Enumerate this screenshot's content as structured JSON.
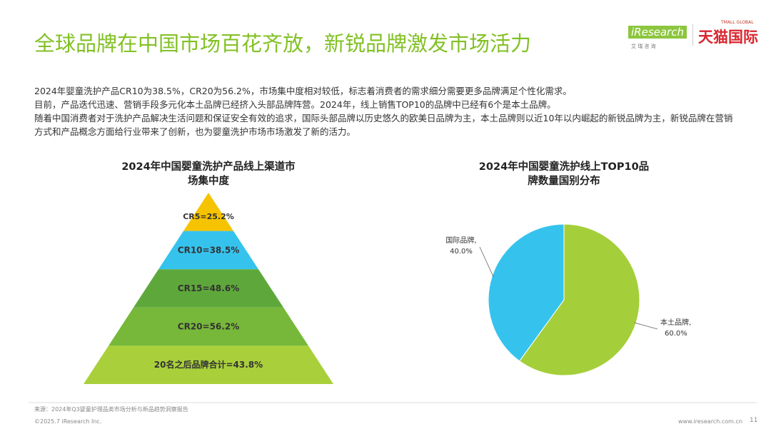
{
  "header": {
    "title": "全球品牌在中国市场百花齐放，新锐品牌激发市场活力",
    "logo_en": "iResearch",
    "logo_cn": "艾 瑞 咨 询",
    "partner": "天猫国际",
    "partner_en": "TMALL GLOBAL"
  },
  "paragraphs": [
    "2024年婴童洗护产品CR10为38.5%，CR20为56.2%，市场集中度相对较低，标志着消费者的需求细分需要更多品牌满足个性化需求。",
    "目前，产品迭代迅速、营销手段多元化本土品牌已经挤入头部品牌阵营。2024年，线上销售TOP10的品牌中已经有6个是本土品牌。",
    "随着中国消费者对于洗护产品解决生活问题和保证安全有效的追求，国际头部品牌以历史悠久的欧美日品牌为主，本土品牌则以近10年以内崛起的新锐品牌为主，新锐品牌在营销方式和产品概念方面给行业带来了创新，也为婴童洗护市场市场激发了新的活力。"
  ],
  "chart_data": [
    {
      "type": "pyramid",
      "title": "2024年中国婴童洗护产品线上渠道市场集中度",
      "values": [
        25.2,
        38.5,
        48.6,
        56.2,
        43.8
      ],
      "value_labels": [
        "CR5=25.2%",
        "CR10=38.5%",
        "CR15=48.6%",
        "CR20=56.2%",
        "20名之后品牌合计=43.8%"
      ],
      "colors": [
        "#f6c300",
        "#35c3ee",
        "#5ea83b",
        "#77b83a",
        "#a9d03a"
      ]
    },
    {
      "type": "pie",
      "title": "2024年中国婴童洗护线上TOP10品牌数量国别分布",
      "categories": [
        "本土品牌,",
        "国际品牌,"
      ],
      "values": [
        60.0,
        40.0
      ],
      "value_labels": [
        "60.0%",
        "40.0%"
      ],
      "colors": [
        "#a4cf3a",
        "#35c3ee"
      ]
    }
  ],
  "footer": {
    "source": "来源：2024年Q3婴童护理品类市场分析与新品趋势洞察报告",
    "copyright": "©2025.7 iResearch Inc.",
    "site": "www.iresearch.com.cn",
    "page": "11"
  }
}
